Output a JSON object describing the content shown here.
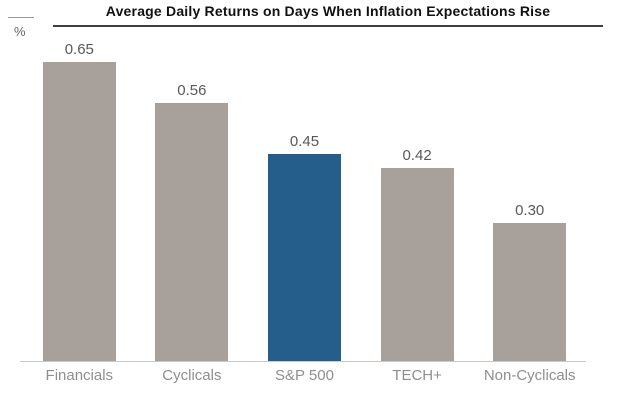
{
  "chart_data": {
    "type": "bar",
    "title": "Average Daily Returns on Days When Inflation Expectations Rise",
    "ylabel": "%",
    "categories": [
      "Financials",
      "Cyclicals",
      "S&P 500",
      "TECH+",
      "Non-Cyclicals"
    ],
    "values": [
      0.65,
      0.56,
      0.45,
      0.42,
      0.3
    ],
    "value_labels": [
      "0.65",
      "0.56",
      "0.45",
      "0.42",
      "0.30"
    ],
    "highlight_index": 2,
    "ylim": [
      0,
      0.7
    ],
    "grid": false,
    "legend": "none",
    "annotations": "value data labels shown above each bar",
    "colors": {
      "bar_default": "#a8a09a",
      "bar_highlight": "#255e8b",
      "title_text": "#111111",
      "title_underline": "#3f3f3f",
      "value_label": "#595959",
      "category_label": "#8f8f8f",
      "axis_line": "#c9c9c9",
      "unit_label": "#666666"
    }
  }
}
